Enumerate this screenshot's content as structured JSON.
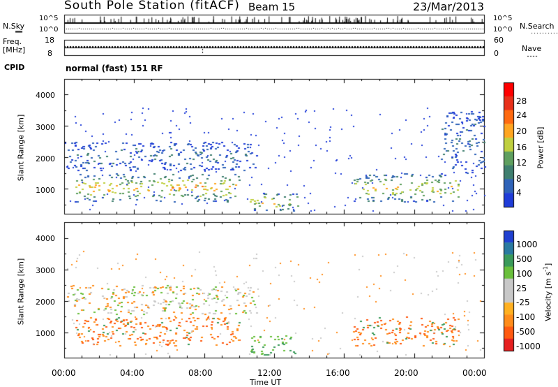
{
  "header": {
    "station": "South Pole Station (fitACF)",
    "beam": "Beam 15",
    "date": "23/Mar/2013"
  },
  "strip": {
    "nsky_label": "N.Sky",
    "nsky_top": "10^5",
    "nsky_bottom": "10^0",
    "nsearch_label": "N.Search",
    "nsearch_top": "10^5",
    "nsearch_bottom": "10^0",
    "freq_label": "Freq.",
    "freq_unit": "[MHz]",
    "freq_top": "18",
    "freq_bottom": "8",
    "nave_label": "Nave",
    "nave_top": "60",
    "nave_bottom": "0",
    "cpid_label": "CPID",
    "cpid_value": "normal (fast) 151 RF"
  },
  "colors": {
    "power": [
      "#1f3cd8",
      "#2f63b8",
      "#3f7f6f",
      "#5f9f5f",
      "#bfcf3f",
      "#ffa520",
      "#ff6a10",
      "#e8301a",
      "#ff0000"
    ],
    "velocity": [
      "#e62020",
      "#ff5a10",
      "#ff8c1a",
      "#ffb020",
      "#c8c8c8",
      "#c8c8c8",
      "#6abf3c",
      "#3a9a5a",
      "#2a7aa0",
      "#2040d0"
    ]
  },
  "chart_data": [
    {
      "type": "heatmap",
      "title": "Power",
      "xlabel": "",
      "ylabel": "Slant Range [km]",
      "xlim": [
        "00:00",
        "24:00"
      ],
      "ylim": [
        200,
        4500
      ],
      "yticks": [
        "1000",
        "2000",
        "3000",
        "4000"
      ],
      "colorbar": {
        "label": "Power [dB]",
        "range": [
          0,
          32
        ],
        "ticks": [
          "4",
          "8",
          "12",
          "16",
          "20",
          "24",
          "28"
        ]
      },
      "regions": [
        {
          "t": [
            0.6,
            10.0
          ],
          "range": [
            600,
            1500
          ],
          "level": 22
        },
        {
          "t": [
            10.6,
            13.4
          ],
          "range": [
            300,
            900
          ],
          "level": 20
        },
        {
          "t": [
            16.5,
            22.5
          ],
          "range": [
            600,
            1500
          ],
          "level": 20
        },
        {
          "t": [
            0.1,
            11.0
          ],
          "range": [
            1600,
            2500
          ],
          "level": 8
        },
        {
          "t": [
            21.5,
            24.0
          ],
          "range": [
            1500,
            3500
          ],
          "level": 8
        }
      ]
    },
    {
      "type": "heatmap",
      "title": "Velocity",
      "xlabel": "Time UT",
      "ylabel": "Slant Range [km]",
      "xlim": [
        "00:00",
        "24:00"
      ],
      "ylim": [
        200,
        4500
      ],
      "xticks": [
        "00:00",
        "04:00",
        "08:00",
        "12:00",
        "16:00",
        "20:00",
        "00:00"
      ],
      "yticks": [
        "1000",
        "2000",
        "3000",
        "4000"
      ],
      "colorbar": {
        "label": "Velocity [m s^-1]",
        "ticks": [
          "1000",
          "500",
          "100",
          "25",
          "-25",
          "-100",
          "-500",
          "-1000"
        ]
      },
      "regions": [
        {
          "t": [
            0.6,
            10.0
          ],
          "range": [
            600,
            1500
          ],
          "velocity": -100
        },
        {
          "t": [
            10.6,
            13.4
          ],
          "range": [
            300,
            900
          ],
          "velocity": 100
        },
        {
          "t": [
            16.5,
            22.5
          ],
          "range": [
            600,
            1500
          ],
          "velocity": -100
        },
        {
          "t": [
            0.1,
            11.0
          ],
          "range": [
            1600,
            2500
          ],
          "velocity": 0
        }
      ]
    }
  ]
}
